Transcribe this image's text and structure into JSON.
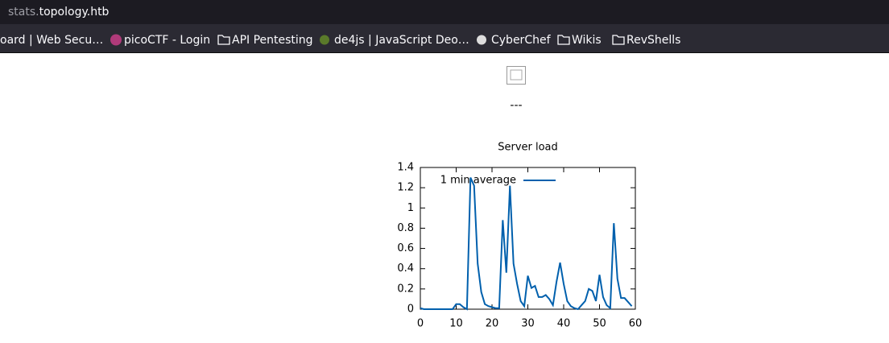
{
  "browser": {
    "url_prefix": "stats.",
    "url_domain": "topology.htb",
    "bookmarks": [
      "oard | Web Secu…",
      "picoCTF - Login",
      "API Pentesting",
      "de4js | JavaScript Deo…",
      "CyberChef",
      "Wikis",
      "RevShells"
    ]
  },
  "page": {
    "separator": "---"
  },
  "chart_data": {
    "type": "line",
    "title": "Server load",
    "x": [
      0,
      1,
      2,
      3,
      4,
      5,
      6,
      7,
      8,
      9,
      10,
      11,
      12,
      13,
      14,
      15,
      16,
      17,
      18,
      19,
      20,
      21,
      22,
      23,
      24,
      25,
      26,
      27,
      28,
      29,
      30,
      31,
      32,
      33,
      34,
      35,
      36,
      37,
      38,
      39,
      40,
      41,
      42,
      43,
      44,
      45,
      46,
      47,
      48,
      49,
      50,
      51,
      52,
      53,
      54,
      55,
      56,
      57,
      58,
      59
    ],
    "series": [
      {
        "name": "1 min average",
        "color": "#0060ad",
        "values": [
          0.01,
          0,
          0,
          0,
          0,
          0,
          0,
          0,
          0,
          0,
          0.05,
          0.05,
          0.02,
          0,
          1.3,
          1.22,
          0.45,
          0.17,
          0.05,
          0.03,
          0.02,
          0.01,
          0.01,
          0.88,
          0.36,
          1.22,
          0.45,
          0.25,
          0.08,
          0.03,
          0.33,
          0.21,
          0.23,
          0.12,
          0.12,
          0.14,
          0.1,
          0.04,
          0.27,
          0.46,
          0.25,
          0.08,
          0.03,
          0.01,
          0,
          0.04,
          0.08,
          0.2,
          0.18,
          0.08,
          0.34,
          0.12,
          0.04,
          0.01,
          0.85,
          0.3,
          0.11,
          0.11,
          0.07,
          0.03
        ]
      }
    ],
    "xlim": [
      0,
      60
    ],
    "xticks": [
      0,
      10,
      20,
      30,
      40,
      50,
      60
    ],
    "ylim": [
      0,
      1.4
    ],
    "yticks": [
      0,
      0.2,
      0.4,
      0.6,
      0.8,
      1,
      1.2,
      1.4
    ],
    "legend": "top-left"
  }
}
